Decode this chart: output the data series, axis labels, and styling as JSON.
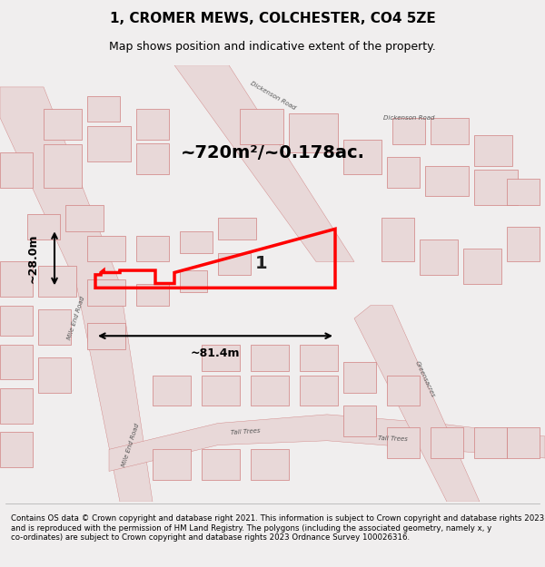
{
  "title": "1, CROMER MEWS, COLCHESTER, CO4 5ZE",
  "subtitle": "Map shows position and indicative extent of the property.",
  "footer": "Contains OS data © Crown copyright and database right 2021. This information is subject to Crown copyright and database rights 2023 and is reproduced with the permission of HM Land Registry. The polygons (including the associated geometry, namely x, y co-ordinates) are subject to Crown copyright and database rights 2023 Ordnance Survey 100026316.",
  "area_label": "~720m²/~0.178ac.",
  "width_label": "~81.4m",
  "height_label": "~28.0m",
  "plot_number": "1",
  "bg_color": "#f0eeee",
  "map_bg": "#f5f0f0",
  "road_color": "#e8c8c8",
  "building_color": "#e8d8d8",
  "plot_line_color": "#ff0000",
  "dim_line_color": "#000000",
  "title_color": "#000000",
  "footer_color": "#000000",
  "map_line_color": "#d08080"
}
